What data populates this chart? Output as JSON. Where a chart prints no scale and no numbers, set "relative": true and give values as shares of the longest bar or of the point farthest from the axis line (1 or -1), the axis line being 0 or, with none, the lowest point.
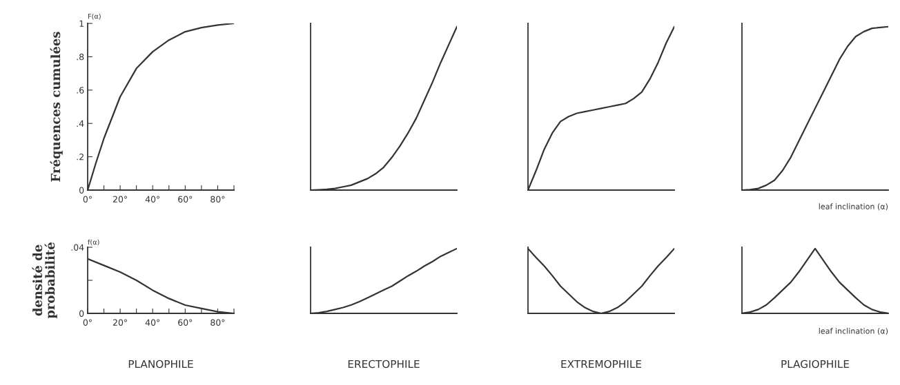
{
  "chart_data": [
    {
      "type": "line",
      "ylabel": "Fréquences cumulées",
      "annotations": [
        "F(α)"
      ],
      "x": [
        0,
        5,
        10,
        20,
        30,
        40,
        50,
        60,
        70,
        80,
        90
      ],
      "series": [
        {
          "color": "#333333",
          "values": [
            0,
            0.16,
            0.31,
            0.56,
            0.73,
            0.83,
            0.9,
            0.95,
            0.975,
            0.99,
            1.0
          ]
        }
      ],
      "xlim": [
        0,
        90
      ],
      "ylim": [
        0,
        1
      ],
      "xticks": [
        {
          "value": 0,
          "label": "0°"
        },
        {
          "value": 10,
          "label": null
        },
        {
          "value": 20,
          "label": "20°"
        },
        {
          "value": 30,
          "label": null
        },
        {
          "value": 40,
          "label": "40°"
        },
        {
          "value": 50,
          "label": null
        },
        {
          "value": 60,
          "label": "60°"
        },
        {
          "value": 70,
          "label": null
        },
        {
          "value": 80,
          "label": "80°"
        },
        {
          "value": 90,
          "label": null
        }
      ],
      "yticks": [
        0,
        {
          "value": 0.2,
          "label": ".2"
        },
        {
          "value": 0.4,
          "label": ".4"
        },
        {
          "value": 0.6,
          "label": ".6"
        },
        {
          "value": 0.8,
          "label": ".8"
        },
        1
      ],
      "grid": false,
      "legend": false
    },
    {
      "type": "line",
      "relative": true,
      "categories": [
        null,
        null,
        null,
        null,
        null,
        null,
        null,
        null,
        null,
        null,
        null,
        null,
        null,
        null,
        null,
        null,
        null,
        null,
        null
      ],
      "series": [
        {
          "color": "#333333",
          "values": [
            0,
            0.002,
            0.005,
            0.01,
            0.02,
            0.03,
            0.05,
            0.07,
            0.1,
            0.14,
            0.2,
            0.27,
            0.35,
            0.44,
            0.55,
            0.66,
            0.78,
            0.89,
            1.0
          ]
        }
      ],
      "tick_labels": false,
      "grid": false,
      "legend": false
    },
    {
      "type": "line",
      "relative": true,
      "categories": [
        null,
        null,
        null,
        null,
        null,
        null,
        null,
        null,
        null,
        null,
        null,
        null,
        null,
        null,
        null,
        null,
        null,
        null,
        null
      ],
      "series": [
        {
          "color": "#333333",
          "values": [
            0,
            0.12,
            0.25,
            0.35,
            0.42,
            0.45,
            0.47,
            0.48,
            0.49,
            0.5,
            0.51,
            0.52,
            0.53,
            0.56,
            0.6,
            0.68,
            0.78,
            0.9,
            1.0
          ]
        }
      ],
      "tick_labels": false,
      "grid": false,
      "legend": false
    },
    {
      "type": "line",
      "relative": true,
      "xlabel": "leaf inclination (α)",
      "categories": [
        null,
        null,
        null,
        null,
        null,
        null,
        null,
        null,
        null,
        null,
        null,
        null,
        null,
        null,
        null,
        null,
        null,
        null,
        null
      ],
      "series": [
        {
          "color": "#333333",
          "values": [
            0,
            0.003,
            0.01,
            0.03,
            0.06,
            0.12,
            0.2,
            0.3,
            0.4,
            0.5,
            0.6,
            0.7,
            0.8,
            0.88,
            0.94,
            0.97,
            0.99,
            0.995,
            1.0
          ]
        }
      ],
      "tick_labels": false,
      "grid": false,
      "legend": false
    },
    {
      "type": "line",
      "title": "PLANOPHILE",
      "ylabel": "densité de\nprobabilité",
      "annotations": [
        "f(α)"
      ],
      "x": [
        0,
        10,
        20,
        30,
        40,
        50,
        60,
        70,
        80,
        90
      ],
      "series": [
        {
          "color": "#333333",
          "values": [
            0.033,
            0.029,
            0.025,
            0.02,
            0.014,
            0.009,
            0.005,
            0.003,
            0.001,
            0.0
          ]
        }
      ],
      "xlim": [
        0,
        90
      ],
      "ylim": [
        0,
        0.04
      ],
      "xticks": [
        {
          "value": 0,
          "label": "0°"
        },
        {
          "value": 10,
          "label": null
        },
        {
          "value": 20,
          "label": "20°"
        },
        {
          "value": 30,
          "label": null
        },
        {
          "value": 40,
          "label": "40°"
        },
        {
          "value": 50,
          "label": null
        },
        {
          "value": 60,
          "label": "60°"
        },
        {
          "value": 70,
          "label": null
        },
        {
          "value": 80,
          "label": "80°"
        },
        {
          "value": 90,
          "label": null
        }
      ],
      "yticks": [
        0,
        {
          "value": 0.02,
          "label": null
        },
        {
          "value": 0.04,
          "label": ".04"
        }
      ],
      "grid": false,
      "legend": false
    },
    {
      "type": "line",
      "relative": true,
      "title": "ERECTOPHILE",
      "categories": [
        null,
        null,
        null,
        null,
        null,
        null,
        null,
        null,
        null,
        null,
        null,
        null,
        null,
        null,
        null,
        null,
        null,
        null,
        null
      ],
      "series": [
        {
          "color": "#333333",
          "values": [
            0,
            0.01,
            0.03,
            0.06,
            0.09,
            0.13,
            0.18,
            0.24,
            0.3,
            0.36,
            0.42,
            0.5,
            0.58,
            0.65,
            0.73,
            0.8,
            0.88,
            0.94,
            1.0
          ]
        }
      ],
      "tick_labels": false,
      "grid": false,
      "legend": false
    },
    {
      "type": "line",
      "relative": true,
      "title": "EXTREMOPHILE",
      "categories": [
        null,
        null,
        null,
        null,
        null,
        null,
        null,
        null,
        null,
        null,
        null,
        null,
        null,
        null,
        null,
        null,
        null,
        null,
        null
      ],
      "series": [
        {
          "color": "#333333",
          "values": [
            1,
            0.86,
            0.73,
            0.58,
            0.42,
            0.3,
            0.18,
            0.09,
            0.03,
            0,
            0.03,
            0.09,
            0.18,
            0.3,
            0.42,
            0.58,
            0.73,
            0.86,
            1
          ]
        }
      ],
      "tick_labels": false,
      "grid": false,
      "legend": false
    },
    {
      "type": "line",
      "relative": true,
      "title": "PLAGIOPHILE",
      "xlabel": "leaf inclination (α)",
      "categories": [
        null,
        null,
        null,
        null,
        null,
        null,
        null,
        null,
        null,
        null,
        null,
        null,
        null,
        null,
        null,
        null,
        null,
        null,
        null
      ],
      "series": [
        {
          "color": "#333333",
          "values": [
            0,
            0.02,
            0.06,
            0.13,
            0.24,
            0.36,
            0.48,
            0.64,
            0.82,
            1.0,
            0.82,
            0.64,
            0.48,
            0.36,
            0.24,
            0.13,
            0.06,
            0.02,
            0
          ]
        }
      ],
      "tick_labels": false,
      "grid": false,
      "legend": false
    }
  ]
}
